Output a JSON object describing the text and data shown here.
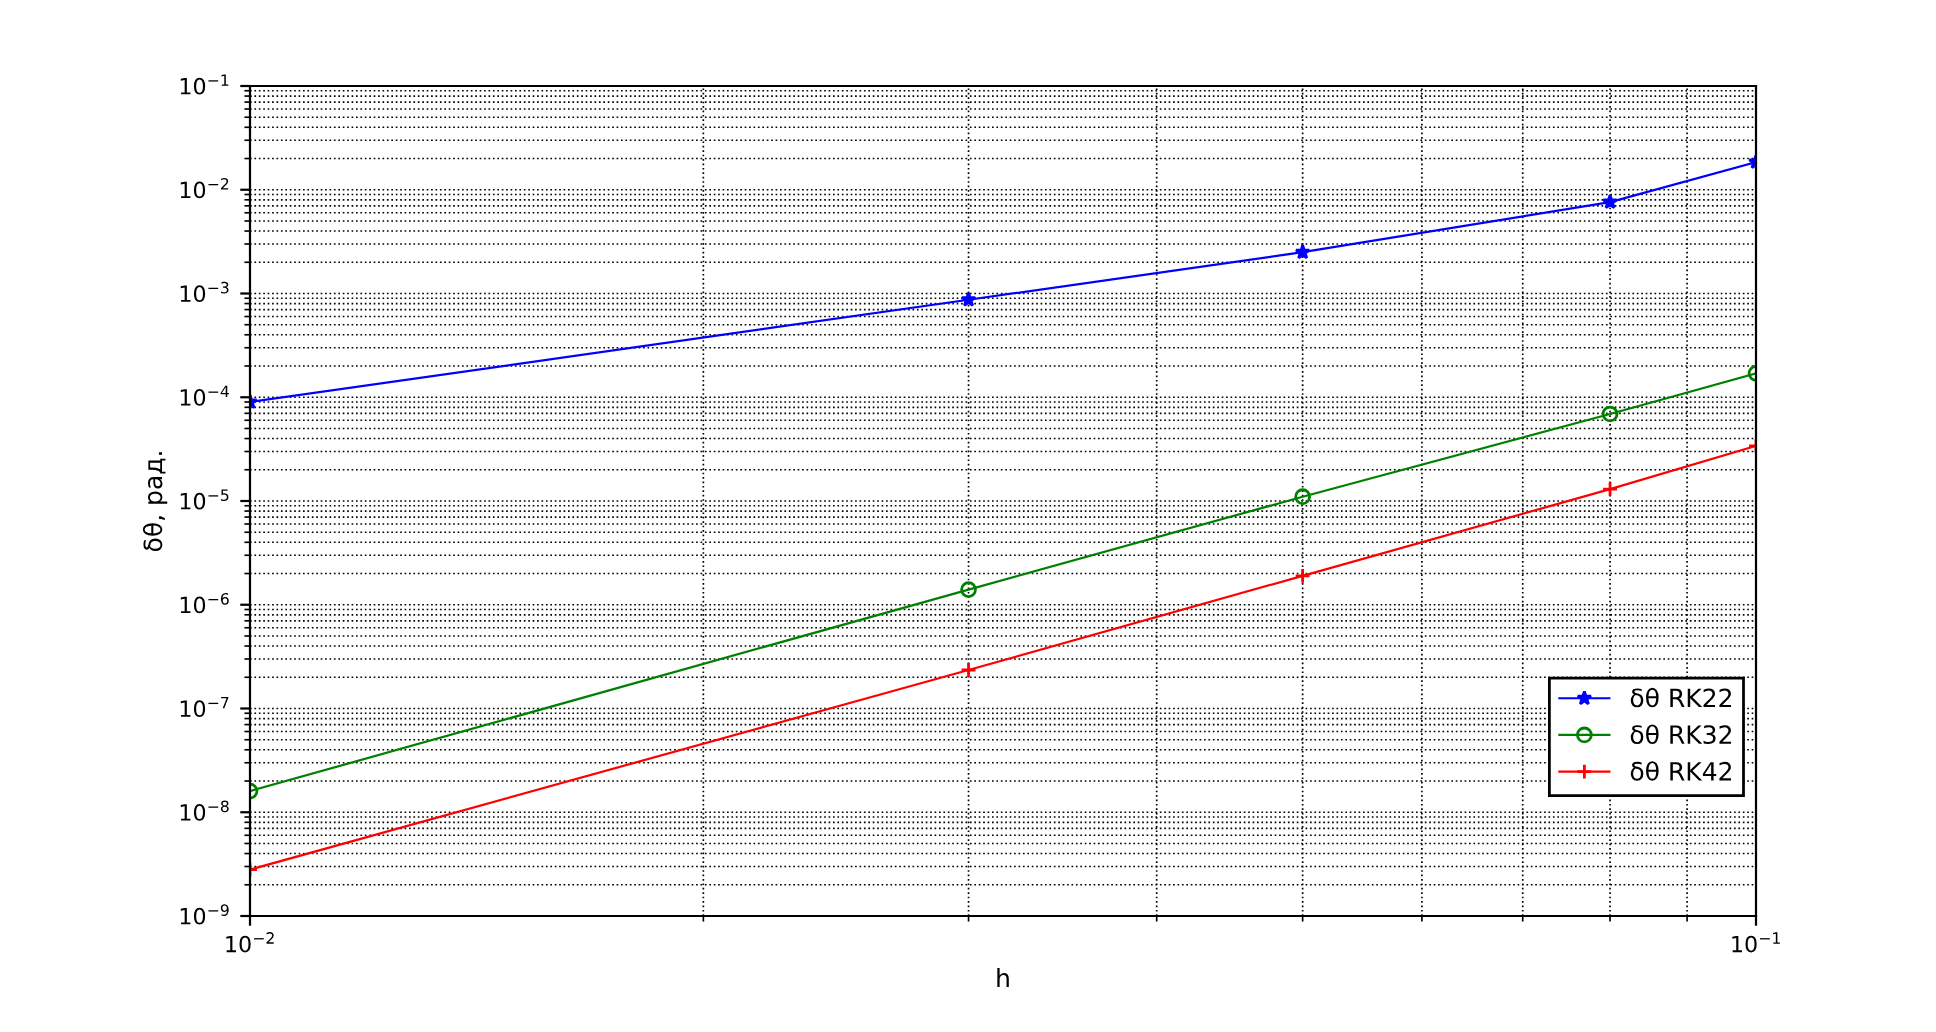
{
  "chart_data": {
    "type": "line",
    "xlabel": "h",
    "ylabel": "δθ, рад.",
    "log": "xy",
    "grid": true,
    "legend": "bottom right",
    "x": [
      0.01,
      0.03,
      0.05,
      0.08,
      0.1
    ],
    "xlim": [
      0.01,
      0.1
    ],
    "xticks": [
      {
        "value": 0.01,
        "label": "10$^{−2}$"
      },
      {
        "value": 0.1,
        "label": "10$^{−1}$"
      }
    ],
    "ylim": [
      1e-09,
      0.1
    ],
    "yticks": [
      {
        "value": 1e-09,
        "label": "10$^{−9}$"
      },
      {
        "value": 1e-08,
        "label": "10$^{−8}$"
      },
      {
        "value": 1e-07,
        "label": "10$^{−7}$"
      },
      {
        "value": 1e-06,
        "label": "10$^{−6}$"
      },
      {
        "value": 1e-05,
        "label": "10$^{−5}$"
      },
      {
        "value": 0.0001,
        "label": "10$^{−4}$"
      },
      {
        "value": 0.001,
        "label": "10$^{−3}$"
      },
      {
        "value": 0.01,
        "label": "10$^{−2}$"
      },
      {
        "value": 0.1,
        "label": "10$^{−1}$"
      }
    ],
    "series": [
      {
        "name": "δθ RK22",
        "color": "#0000ff",
        "marker": "star",
        "values": [
          9e-05,
          0.00087,
          0.0025,
          0.0076,
          0.0185
        ]
      },
      {
        "name": "δθ RK32",
        "color": "#008000",
        "marker": "circle",
        "values": [
          1.6e-08,
          1.4e-06,
          1.1e-05,
          6.9e-05,
          0.00017
        ]
      },
      {
        "name": "δθ RK42",
        "color": "#ff0000",
        "marker": "cross",
        "values": [
          2.8e-09,
          2.35e-07,
          1.9e-06,
          1.3e-05,
          3.4e-05
        ]
      }
    ]
  }
}
